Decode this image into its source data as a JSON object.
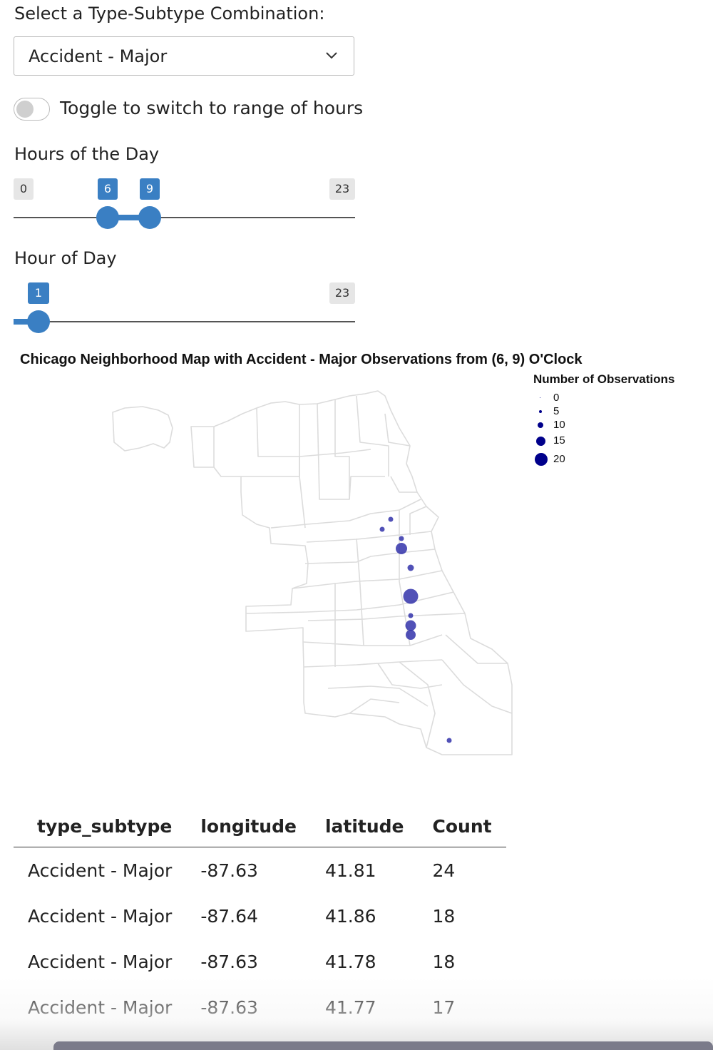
{
  "controls": {
    "select_label": "Select a Type-Subtype Combination:",
    "select_value": "Accident - Major",
    "toggle_label": "Toggle to switch to range of hours",
    "range_slider": {
      "label": "Hours of the Day",
      "min": 0,
      "max": 23,
      "from": 6,
      "to": 9
    },
    "single_slider": {
      "label": "Hour of Day",
      "max": 23,
      "value": 1
    }
  },
  "map": {
    "title": "Chicago Neighborhood Map with Accident - Major Observations from (6, 9) O'Clock",
    "legend_title": "Number of Observations",
    "legend_values": [
      "0",
      "5",
      "10",
      "15",
      "20"
    ],
    "point_color": "#3333aa",
    "legend_color": "#00008b",
    "points": [
      {
        "lon": -87.63,
        "lat": 41.81,
        "count": 24
      },
      {
        "lon": -87.64,
        "lat": 41.86,
        "count": 18
      },
      {
        "lon": -87.63,
        "lat": 41.78,
        "count": 18
      },
      {
        "lon": -87.63,
        "lat": 41.77,
        "count": 17
      }
    ]
  },
  "table": {
    "columns": [
      "type_subtype",
      "longitude",
      "latitude",
      "Count"
    ],
    "rows": [
      [
        "Accident - Major",
        "-87.63",
        "41.81",
        "24"
      ],
      [
        "Accident - Major",
        "-87.64",
        "41.86",
        "18"
      ],
      [
        "Accident - Major",
        "-87.63",
        "41.78",
        "18"
      ],
      [
        "Accident - Major",
        "-87.63",
        "41.77",
        "17"
      ]
    ]
  }
}
